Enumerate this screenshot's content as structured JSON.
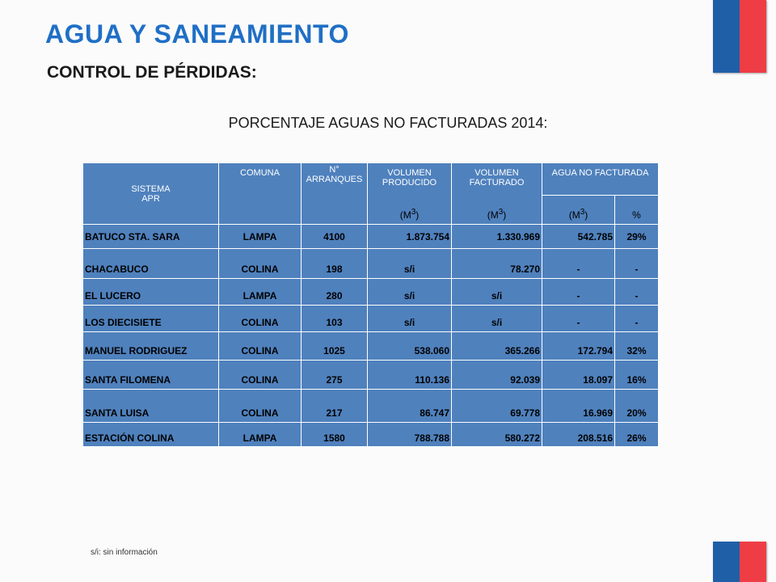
{
  "header": {
    "title": "AGUA Y SANEAMIENTO",
    "subtitle": "CONTROL DE PÉRDIDAS:",
    "table_caption": "PORCENTAJE AGUAS NO FACTURADAS 2014:"
  },
  "colors": {
    "title": "#1f6fc5",
    "table_bg": "#4f81bd",
    "flag_blue": "#1f5fa8",
    "flag_red": "#ee3d44"
  },
  "table": {
    "headers": {
      "sistema": "SISTEMA",
      "apr": "APR",
      "comuna": "COMUNA",
      "arranques_1": "N°",
      "arranques_2": "ARRANQUES",
      "vol_prod_1": "VOLUMEN",
      "vol_prod_2": "PRODUCIDO",
      "vol_fact_1": "VOLUMEN",
      "vol_fact_2": "FACTURADO",
      "no_facturada": "AGUA NO FACTURADA",
      "unit_m3": "(M",
      "unit_m3_sup": "3",
      "unit_close": ")",
      "percent": "%"
    },
    "rows": [
      {
        "sistema": "BATUCO STA. SARA",
        "comuna": "LAMPA",
        "arranques": "4100",
        "producido": "1.873.754",
        "facturado": "1.330.969",
        "no_fact_m3": "542.785",
        "no_fact_pct": "29%"
      },
      {
        "sistema": "CHACABUCO",
        "comuna": "COLINA",
        "arranques": "198",
        "producido": "s/i",
        "facturado": "78.270",
        "no_fact_m3": "-",
        "no_fact_pct": "-"
      },
      {
        "sistema": "EL LUCERO",
        "comuna": "LAMPA",
        "arranques": "280",
        "producido": "s/i",
        "facturado": "s/i",
        "no_fact_m3": "-",
        "no_fact_pct": "-"
      },
      {
        "sistema": "LOS DIECISIETE",
        "comuna": "COLINA",
        "arranques": "103",
        "producido": "s/i",
        "facturado": "s/i",
        "no_fact_m3": "-",
        "no_fact_pct": "-"
      },
      {
        "sistema": "MANUEL RODRIGUEZ",
        "comuna": "COLINA",
        "arranques": "1025",
        "producido": "538.060",
        "facturado": "365.266",
        "no_fact_m3": "172.794",
        "no_fact_pct": "32%"
      },
      {
        "sistema": "SANTA FILOMENA",
        "comuna": "COLINA",
        "arranques": "275",
        "producido": "110.136",
        "facturado": "92.039",
        "no_fact_m3": "18.097",
        "no_fact_pct": "16%"
      },
      {
        "sistema": "SANTA LUISA",
        "comuna": "COLINA",
        "arranques": "217",
        "producido": "86.747",
        "facturado": "69.778",
        "no_fact_m3": "16.969",
        "no_fact_pct": "20%"
      },
      {
        "sistema": "ESTACIÓN COLINA",
        "comuna": "LAMPA",
        "arranques": "1580",
        "producido": "788.788",
        "facturado": "580.272",
        "no_fact_m3": "208.516",
        "no_fact_pct": "26%"
      }
    ]
  },
  "footnote": "s/i: sin información"
}
